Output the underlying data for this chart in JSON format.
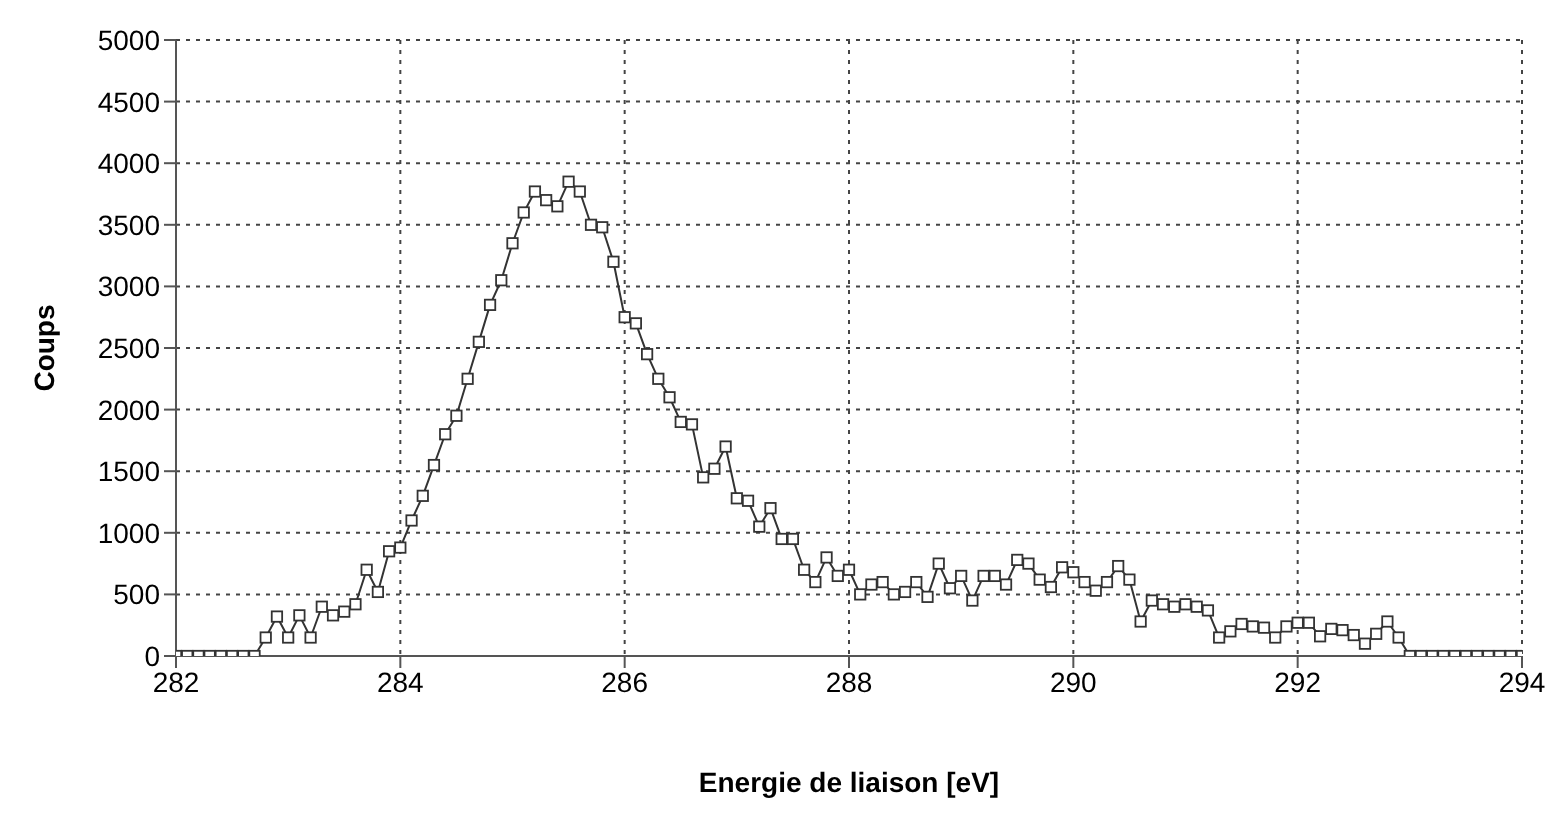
{
  "chart_data": {
    "type": "line",
    "xlabel": "Energie de liaison [eV]",
    "ylabel": "Coups",
    "x": [
      282.0,
      282.1,
      282.2,
      282.3,
      282.4,
      282.5,
      282.6,
      282.7,
      282.8,
      282.9,
      283.0,
      283.1,
      283.2,
      283.3,
      283.4,
      283.5,
      283.6,
      283.7,
      283.8,
      283.9,
      284.0,
      284.1,
      284.2,
      284.3,
      284.4,
      284.5,
      284.6,
      284.7,
      284.8,
      284.9,
      285.0,
      285.1,
      285.2,
      285.3,
      285.4,
      285.5,
      285.6,
      285.7,
      285.8,
      285.9,
      286.0,
      286.1,
      286.2,
      286.3,
      286.4,
      286.5,
      286.6,
      286.7,
      286.8,
      286.9,
      287.0,
      287.1,
      287.2,
      287.3,
      287.4,
      287.5,
      287.6,
      287.7,
      287.8,
      287.9,
      288.0,
      288.1,
      288.2,
      288.3,
      288.4,
      288.5,
      288.6,
      288.7,
      288.8,
      288.9,
      289.0,
      289.1,
      289.2,
      289.3,
      289.4,
      289.5,
      289.6,
      289.7,
      289.8,
      289.9,
      290.0,
      290.1,
      290.2,
      290.3,
      290.4,
      290.5,
      290.6,
      290.7,
      290.8,
      290.9,
      291.0,
      291.1,
      291.2,
      291.3,
      291.4,
      291.5,
      291.6,
      291.7,
      291.8,
      291.9,
      292.0,
      292.1,
      292.2,
      292.3,
      292.4,
      292.5,
      292.6,
      292.7,
      292.8,
      292.9,
      293.0,
      293.1,
      293.2,
      293.3,
      293.4,
      293.5,
      293.6,
      293.7,
      293.8,
      293.9,
      294.0
    ],
    "series": [
      {
        "color": "#333333",
        "values": [
          0,
          0,
          0,
          0,
          0,
          0,
          0,
          0,
          150,
          320,
          150,
          330,
          150,
          400,
          330,
          360,
          420,
          700,
          520,
          850,
          880,
          1100,
          1300,
          1550,
          1800,
          1950,
          2250,
          2550,
          2850,
          3050,
          3350,
          3600,
          3770,
          3700,
          3650,
          3850,
          3770,
          3500,
          3480,
          3200,
          2750,
          2700,
          2450,
          2250,
          2100,
          1900,
          1880,
          1450,
          1520,
          1700,
          1280,
          1260,
          1050,
          1200,
          950,
          950,
          700,
          600,
          800,
          650,
          700,
          500,
          580,
          600,
          500,
          520,
          600,
          480,
          750,
          550,
          650,
          450,
          650,
          650,
          580,
          780,
          750,
          620,
          560,
          720,
          680,
          600,
          530,
          600,
          730,
          620,
          280,
          450,
          420,
          400,
          420,
          400,
          370,
          150,
          200,
          260,
          240,
          230,
          150,
          240,
          270,
          270,
          160,
          220,
          210,
          170,
          100,
          180,
          280,
          150,
          0,
          0,
          0,
          0,
          0,
          0,
          0,
          0,
          0,
          0,
          0
        ]
      }
    ],
    "xlim": [
      282,
      294
    ],
    "xticks": [
      282,
      284,
      286,
      288,
      290,
      292,
      294
    ],
    "ylim": [
      0,
      5000
    ],
    "yticks": [
      0,
      500,
      1000,
      1500,
      2000,
      2500,
      3000,
      3500,
      4000,
      4500,
      5000
    ],
    "grid": true,
    "legend": false,
    "marker": "square",
    "line_style": "solid"
  }
}
